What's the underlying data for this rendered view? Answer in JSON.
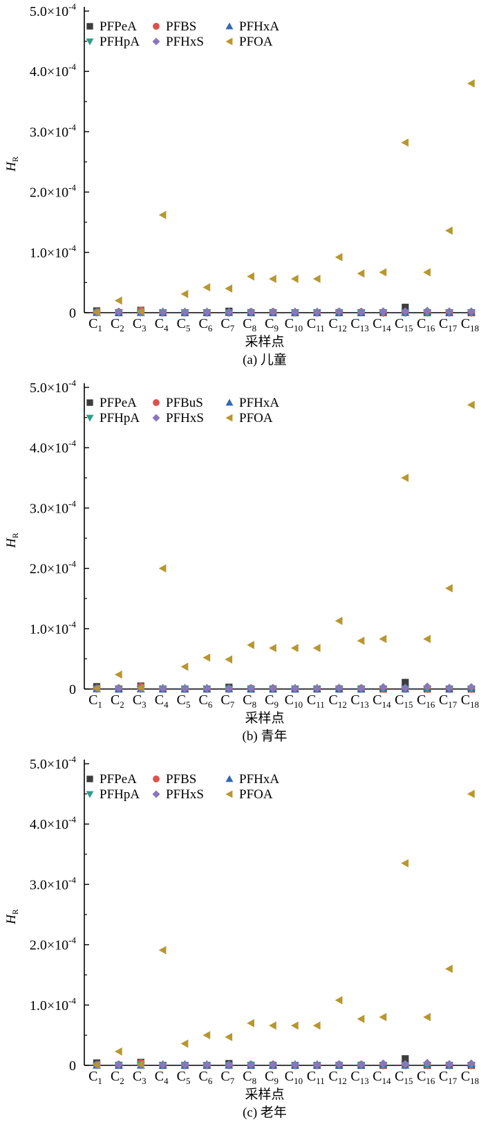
{
  "figure": {
    "colors": {
      "PFPeA": "#3d3d3d",
      "PFBS": "#d9534f",
      "PFHxA": "#3568b0",
      "PFHpA": "#2aa085",
      "PFHxS": "#8877bb",
      "PFOA": "#b8972e"
    },
    "marker_shapes": {
      "PFPeA": "square",
      "PFBS": "circle",
      "PFHxA": "triangle-up",
      "PFHpA": "triangle-down",
      "PFHxS": "diamond",
      "PFOA": "triangle-left"
    }
  },
  "chart_data": [
    {
      "type": "scatter",
      "caption": "(a) 儿童",
      "xlabel": "采样点",
      "ylabel": "H",
      "ylabel_sub": "R",
      "ylim": [
        0,
        0.0005
      ],
      "y_ticks": [
        {
          "value": 0,
          "mant": "0",
          "exp": ""
        },
        {
          "value": 0.0001,
          "mant": "1.0×10",
          "exp": "-4"
        },
        {
          "value": 0.0002,
          "mant": "2.0×10",
          "exp": "-4"
        },
        {
          "value": 0.0003,
          "mant": "3.0×10",
          "exp": "-4"
        },
        {
          "value": 0.0004,
          "mant": "4.0×10",
          "exp": "-4"
        },
        {
          "value": 0.0005,
          "mant": "5.0×10",
          "exp": "-4"
        }
      ],
      "categories": [
        "C1",
        "C2",
        "C3",
        "C4",
        "C5",
        "C6",
        "C7",
        "C8",
        "C9",
        "C10",
        "C11",
        "C12",
        "C13",
        "C14",
        "C15",
        "C16",
        "C17",
        "C18"
      ],
      "category_labels": [
        {
          "base": "C",
          "sub": "1"
        },
        {
          "base": "C",
          "sub": "2"
        },
        {
          "base": "C",
          "sub": "3"
        },
        {
          "base": "C",
          "sub": "4"
        },
        {
          "base": "C",
          "sub": "5"
        },
        {
          "base": "C",
          "sub": "6"
        },
        {
          "base": "C",
          "sub": "7"
        },
        {
          "base": "C",
          "sub": "8"
        },
        {
          "base": "C",
          "sub": "9"
        },
        {
          "base": "C",
          "sub": "10"
        },
        {
          "base": "C",
          "sub": "11"
        },
        {
          "base": "C",
          "sub": "12"
        },
        {
          "base": "C",
          "sub": "13"
        },
        {
          "base": "C",
          "sub": "14"
        },
        {
          "base": "C",
          "sub": "15"
        },
        {
          "base": "C",
          "sub": "16"
        },
        {
          "base": "C",
          "sub": "17"
        },
        {
          "base": "C",
          "sub": "18"
        }
      ],
      "series": [
        {
          "name": "PFPeA",
          "key": "PFPeA",
          "values": [
            3e-06,
            0,
            4e-06,
            0,
            0,
            0,
            2.5e-06,
            0,
            0,
            0,
            0,
            0,
            0,
            0,
            9e-06,
            0,
            0,
            0
          ]
        },
        {
          "name": "PFBS",
          "key": "PFBS",
          "values": [
            1e-06,
            1e-06,
            3.5e-06,
            0,
            0,
            0,
            0,
            1e-06,
            1e-06,
            0,
            0,
            1e-06,
            1e-06,
            0,
            0,
            0,
            0,
            0
          ]
        },
        {
          "name": "PFHxA",
          "key": "PFHxA",
          "values": [
            0,
            0,
            0,
            0,
            0,
            0,
            0,
            0,
            0,
            0,
            0,
            0,
            0,
            2e-06,
            0,
            2e-06,
            0,
            1.5e-06
          ]
        },
        {
          "name": "PFHpA",
          "key": "PFHpA",
          "values": [
            0,
            0,
            0,
            0,
            0,
            0,
            0,
            0,
            0,
            0,
            0,
            0,
            0,
            0,
            0,
            0,
            0,
            0
          ]
        },
        {
          "name": "PFHxS",
          "key": "PFHxS",
          "values": [
            1e-06,
            1e-06,
            1e-06,
            1e-06,
            1e-06,
            1e-06,
            1e-06,
            1e-06,
            1e-06,
            1e-06,
            1e-06,
            2e-06,
            1e-06,
            2e-06,
            2e-06,
            3e-06,
            2e-06,
            2e-06
          ]
        },
        {
          "name": "PFOA",
          "key": "PFOA",
          "values": [
            1e-06,
            2e-05,
            2e-06,
            0.000162,
            3.1e-05,
            4.2e-05,
            4e-05,
            6e-05,
            5.6e-05,
            5.6e-05,
            5.6e-05,
            9.2e-05,
            6.5e-05,
            6.7e-05,
            0.000282,
            6.7e-05,
            0.000136,
            0.00038
          ]
        }
      ],
      "legend": [
        {
          "label": "PFPeA",
          "key": "PFPeA"
        },
        {
          "label": "PFBS",
          "key": "PFBS"
        },
        {
          "label": "PFHxA",
          "key": "PFHxA"
        },
        {
          "label": "PFHpA",
          "key": "PFHpA"
        },
        {
          "label": "PFHxS",
          "key": "PFHxS"
        },
        {
          "label": "PFOA",
          "key": "PFOA"
        }
      ]
    },
    {
      "type": "scatter",
      "caption": "(b) 青年",
      "xlabel": "采样点",
      "ylabel": "H",
      "ylabel_sub": "R",
      "ylim": [
        0,
        0.0005
      ],
      "y_ticks": [
        {
          "value": 0,
          "mant": "0",
          "exp": ""
        },
        {
          "value": 0.0001,
          "mant": "1.0×10",
          "exp": "-4"
        },
        {
          "value": 0.0002,
          "mant": "2.0×10",
          "exp": "-4"
        },
        {
          "value": 0.0003,
          "mant": "3.0×10",
          "exp": "-4"
        },
        {
          "value": 0.0004,
          "mant": "4.0×10",
          "exp": "-4"
        },
        {
          "value": 0.0005,
          "mant": "5.0×10",
          "exp": "-4"
        }
      ],
      "categories": [
        "C1",
        "C2",
        "C3",
        "C4",
        "C5",
        "C6",
        "C7",
        "C8",
        "C9",
        "C10",
        "C11",
        "C12",
        "C13",
        "C14",
        "C15",
        "C16",
        "C17",
        "C18"
      ],
      "category_labels": [
        {
          "base": "C",
          "sub": "1"
        },
        {
          "base": "C",
          "sub": "2"
        },
        {
          "base": "C",
          "sub": "3"
        },
        {
          "base": "C",
          "sub": "4"
        },
        {
          "base": "C",
          "sub": "5"
        },
        {
          "base": "C",
          "sub": "6"
        },
        {
          "base": "C",
          "sub": "7"
        },
        {
          "base": "C",
          "sub": "8"
        },
        {
          "base": "C",
          "sub": "9"
        },
        {
          "base": "C",
          "sub": "10"
        },
        {
          "base": "C",
          "sub": "11"
        },
        {
          "base": "C",
          "sub": "12"
        },
        {
          "base": "C",
          "sub": "13"
        },
        {
          "base": "C",
          "sub": "14"
        },
        {
          "base": "C",
          "sub": "15"
        },
        {
          "base": "C",
          "sub": "16"
        },
        {
          "base": "C",
          "sub": "17"
        },
        {
          "base": "C",
          "sub": "18"
        }
      ],
      "series": [
        {
          "name": "PFPeA",
          "key": "PFPeA",
          "values": [
            4e-06,
            0,
            5e-06,
            0,
            0,
            0,
            3e-06,
            0,
            0,
            0,
            0,
            0,
            0,
            0,
            1.1e-05,
            0,
            0,
            0
          ]
        },
        {
          "name": "PFBuS",
          "key": "PFBS",
          "values": [
            1e-06,
            1e-06,
            4e-06,
            0,
            0,
            0,
            0,
            1e-06,
            1e-06,
            0,
            0,
            1e-06,
            1e-06,
            0,
            0,
            0,
            0,
            0
          ]
        },
        {
          "name": "PFHxA",
          "key": "PFHxA",
          "values": [
            0,
            0,
            0,
            0,
            0,
            0,
            0,
            0,
            0,
            0,
            0,
            0,
            0,
            2e-06,
            0,
            2e-06,
            0,
            2e-06
          ]
        },
        {
          "name": "PFHpA",
          "key": "PFHpA",
          "values": [
            0,
            0,
            0,
            0,
            0,
            0,
            0,
            0,
            0,
            0,
            0,
            0,
            0,
            0,
            0,
            0,
            0,
            0
          ]
        },
        {
          "name": "PFHxS",
          "key": "PFHxS",
          "values": [
            1e-06,
            1e-06,
            1e-06,
            1e-06,
            1e-06,
            1e-06,
            1e-06,
            1e-06,
            1e-06,
            1e-06,
            1e-06,
            2e-06,
            1e-06,
            3e-06,
            2e-06,
            4e-06,
            2e-06,
            3e-06
          ]
        },
        {
          "name": "PFOA",
          "key": "PFOA",
          "values": [
            1e-06,
            2.4e-05,
            2e-06,
            0.0002,
            3.7e-05,
            5.2e-05,
            4.9e-05,
            7.3e-05,
            6.8e-05,
            6.8e-05,
            6.8e-05,
            0.000113,
            8e-05,
            8.3e-05,
            0.00035,
            8.3e-05,
            0.000167,
            0.000471
          ]
        }
      ],
      "legend": [
        {
          "label": "PFPeA",
          "key": "PFPeA"
        },
        {
          "label": "PFBuS",
          "key": "PFBS"
        },
        {
          "label": "PFHxA",
          "key": "PFHxA"
        },
        {
          "label": "PFHpA",
          "key": "PFHpA"
        },
        {
          "label": "PFHxS",
          "key": "PFHxS"
        },
        {
          "label": "PFOA",
          "key": "PFOA"
        }
      ]
    },
    {
      "type": "scatter",
      "caption": "(c) 老年",
      "xlabel": "采样点",
      "ylabel": "H",
      "ylabel_sub": "R",
      "ylim": [
        0,
        0.0005
      ],
      "y_ticks": [
        {
          "value": 0,
          "mant": "0",
          "exp": ""
        },
        {
          "value": 0.0001,
          "mant": "1.0×10",
          "exp": "-4"
        },
        {
          "value": 0.0002,
          "mant": "2.0×10",
          "exp": "-4"
        },
        {
          "value": 0.0003,
          "mant": "3.0×10",
          "exp": "-4"
        },
        {
          "value": 0.0004,
          "mant": "4.0×10",
          "exp": "-4"
        },
        {
          "value": 0.0005,
          "mant": "5.0×10",
          "exp": "-4"
        }
      ],
      "categories": [
        "C1",
        "C2",
        "C3",
        "C4",
        "C5",
        "C6",
        "C7",
        "C8",
        "C9",
        "C10",
        "C11",
        "C12",
        "C13",
        "C14",
        "C15",
        "C16",
        "C17",
        "C18"
      ],
      "category_labels": [
        {
          "base": "C",
          "sub": "1"
        },
        {
          "base": "C",
          "sub": "2"
        },
        {
          "base": "C",
          "sub": "3"
        },
        {
          "base": "C",
          "sub": "4"
        },
        {
          "base": "C",
          "sub": "5"
        },
        {
          "base": "C",
          "sub": "6"
        },
        {
          "base": "C",
          "sub": "7"
        },
        {
          "base": "C",
          "sub": "8"
        },
        {
          "base": "C",
          "sub": "9"
        },
        {
          "base": "C",
          "sub": "10"
        },
        {
          "base": "C",
          "sub": "11"
        },
        {
          "base": "C",
          "sub": "12"
        },
        {
          "base": "C",
          "sub": "13"
        },
        {
          "base": "C",
          "sub": "14"
        },
        {
          "base": "C",
          "sub": "15"
        },
        {
          "base": "C",
          "sub": "16"
        },
        {
          "base": "C",
          "sub": "17"
        },
        {
          "base": "C",
          "sub": "18"
        }
      ],
      "series": [
        {
          "name": "PFPeA",
          "key": "PFPeA",
          "values": [
            4e-06,
            0,
            5e-06,
            0,
            0,
            0,
            3e-06,
            0,
            0,
            0,
            0,
            0,
            0,
            0,
            1.1e-05,
            0,
            0,
            0
          ]
        },
        {
          "name": "PFBS",
          "key": "PFBS",
          "values": [
            1e-06,
            1e-06,
            4e-06,
            0,
            0,
            0,
            0,
            1e-06,
            1e-06,
            0,
            0,
            1e-06,
            1e-06,
            0,
            0,
            0,
            0,
            0
          ]
        },
        {
          "name": "PFHxA",
          "key": "PFHxA",
          "values": [
            0,
            0,
            0,
            0,
            0,
            0,
            0,
            0,
            0,
            0,
            0,
            0,
            0,
            2e-06,
            0,
            2e-06,
            0,
            2e-06
          ]
        },
        {
          "name": "PFHpA",
          "key": "PFHpA",
          "values": [
            0,
            0,
            0,
            0,
            0,
            0,
            0,
            0,
            0,
            0,
            0,
            0,
            0,
            0,
            0,
            0,
            0,
            0
          ]
        },
        {
          "name": "PFHxS",
          "key": "PFHxS",
          "values": [
            1e-06,
            1e-06,
            1e-06,
            1e-06,
            1e-06,
            1e-06,
            1e-06,
            1e-06,
            1e-06,
            1e-06,
            1e-06,
            2e-06,
            1e-06,
            3e-06,
            2e-06,
            4e-06,
            2e-06,
            3e-06
          ]
        },
        {
          "name": "PFOA",
          "key": "PFOA",
          "values": [
            1e-06,
            2.3e-05,
            2e-06,
            0.000191,
            3.6e-05,
            5e-05,
            4.7e-05,
            7e-05,
            6.6e-05,
            6.6e-05,
            6.6e-05,
            0.000108,
            7.7e-05,
            8e-05,
            0.000335,
            8e-05,
            0.00016,
            0.00045
          ]
        }
      ],
      "legend": [
        {
          "label": "PFPeA",
          "key": "PFPeA"
        },
        {
          "label": "PFBS",
          "key": "PFBS"
        },
        {
          "label": "PFHxA",
          "key": "PFHxA"
        },
        {
          "label": "PFHpA",
          "key": "PFHpA"
        },
        {
          "label": "PFHxS",
          "key": "PFHxS"
        },
        {
          "label": "PFOA",
          "key": "PFOA"
        }
      ]
    }
  ]
}
